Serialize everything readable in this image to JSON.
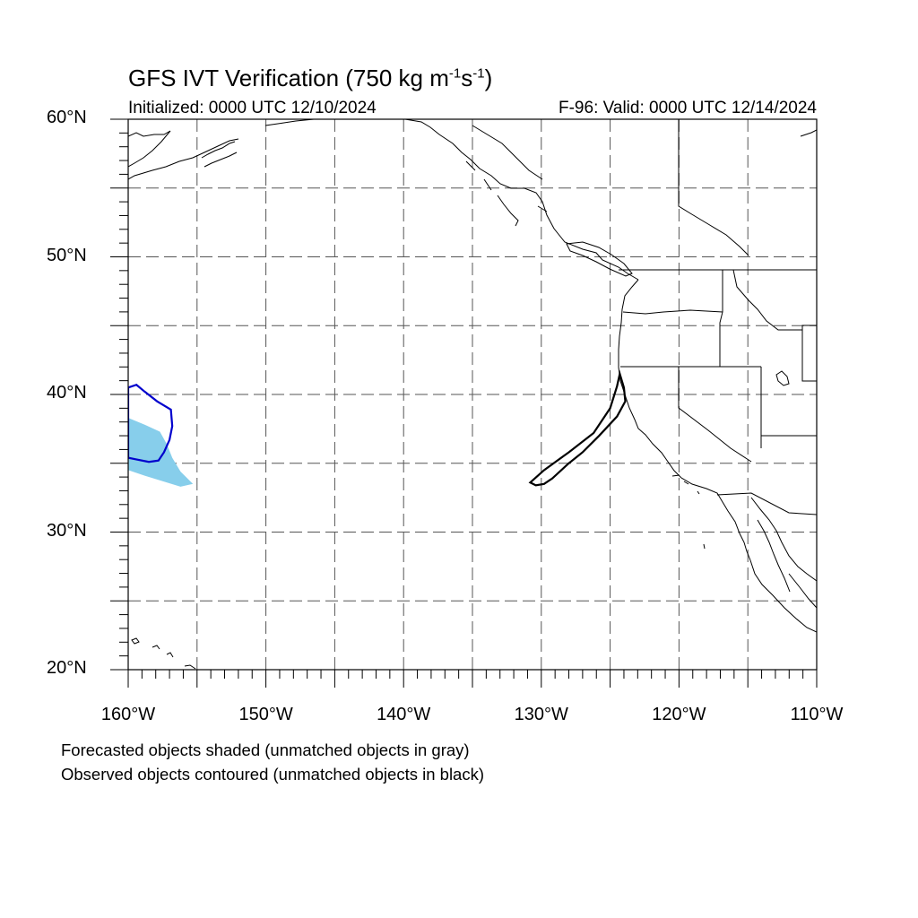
{
  "figure": {
    "title_main": "GFS IVT Verification (750 kg m",
    "title_exp1": "-1",
    "title_mid": "s",
    "title_exp2": "-1",
    "title_close": ")",
    "initialized": "Initialized: 0000 UTC 12/10/2024",
    "valid": "F-96: Valid: 0000 UTC 12/14/2024",
    "caption_forecast": "Forecasted objects shaded (unmatched objects in gray)",
    "caption_observed": "Observed objects contoured (unmatched objects in black)"
  },
  "map": {
    "projection": "cylindrical equidistant",
    "lon_range": [
      -160,
      -110
    ],
    "lat_range": [
      20,
      60
    ],
    "grid": "dashed",
    "lat_labels": [
      {
        "lat": 60,
        "text": "60°N"
      },
      {
        "lat": 50,
        "text": "50°N"
      },
      {
        "lat": 40,
        "text": "40°N"
      },
      {
        "lat": 30,
        "text": "30°N"
      },
      {
        "lat": 20,
        "text": "20°N"
      }
    ],
    "lon_labels": [
      {
        "lon": -160,
        "text": "160°W"
      },
      {
        "lon": -150,
        "text": "150°W"
      },
      {
        "lon": -140,
        "text": "140°W"
      },
      {
        "lon": -130,
        "text": "130°W"
      },
      {
        "lon": -120,
        "text": "120°W"
      },
      {
        "lon": -110,
        "text": "110°W"
      }
    ],
    "colors": {
      "forecast_matched_fill": "#87ceeb",
      "observed_matched_contour": "#0000cd",
      "observed_unmatched_contour": "#000000",
      "coastline": "#000000"
    }
  },
  "objects": [
    {
      "kind": "forecast",
      "status": "matched",
      "style": "shaded light blue",
      "polygon_lonlat": [
        [
          -160,
          38.3
        ],
        [
          -158.8,
          37.8
        ],
        [
          -157.7,
          37.3
        ],
        [
          -157.2,
          36.4
        ],
        [
          -156.8,
          35.4
        ],
        [
          -156.2,
          34.4
        ],
        [
          -155.3,
          33.5
        ],
        [
          -156.2,
          33.3
        ],
        [
          -157.5,
          33.7
        ],
        [
          -158.8,
          34.1
        ],
        [
          -160,
          34.5
        ]
      ]
    },
    {
      "kind": "observed",
      "status": "matched",
      "style": "blue contour",
      "polygon_lonlat": [
        [
          -160,
          40.5
        ],
        [
          -159.4,
          40.7
        ],
        [
          -158.8,
          40.2
        ],
        [
          -157.9,
          39.5
        ],
        [
          -156.9,
          38.9
        ],
        [
          -156.8,
          37.7
        ],
        [
          -157.0,
          36.7
        ],
        [
          -157.4,
          35.8
        ],
        [
          -157.8,
          35.2
        ],
        [
          -158.5,
          35.1
        ],
        [
          -159.5,
          35.3
        ],
        [
          -160,
          35.4
        ]
      ]
    },
    {
      "kind": "observed",
      "status": "unmatched",
      "style": "black contour",
      "polygon_lonlat": [
        [
          -130.8,
          33.6
        ],
        [
          -129.8,
          34.5
        ],
        [
          -128.0,
          35.8
        ],
        [
          -126.2,
          37.2
        ],
        [
          -125.0,
          39.0
        ],
        [
          -124.5,
          40.6
        ],
        [
          -124.3,
          41.5
        ],
        [
          -124.0,
          40.5
        ],
        [
          -123.9,
          39.5
        ],
        [
          -124.5,
          38.4
        ],
        [
          -125.8,
          37.0
        ],
        [
          -127.0,
          35.8
        ],
        [
          -128.0,
          35.0
        ],
        [
          -129.2,
          33.9
        ],
        [
          -129.8,
          33.5
        ],
        [
          -130.4,
          33.4
        ]
      ]
    }
  ]
}
